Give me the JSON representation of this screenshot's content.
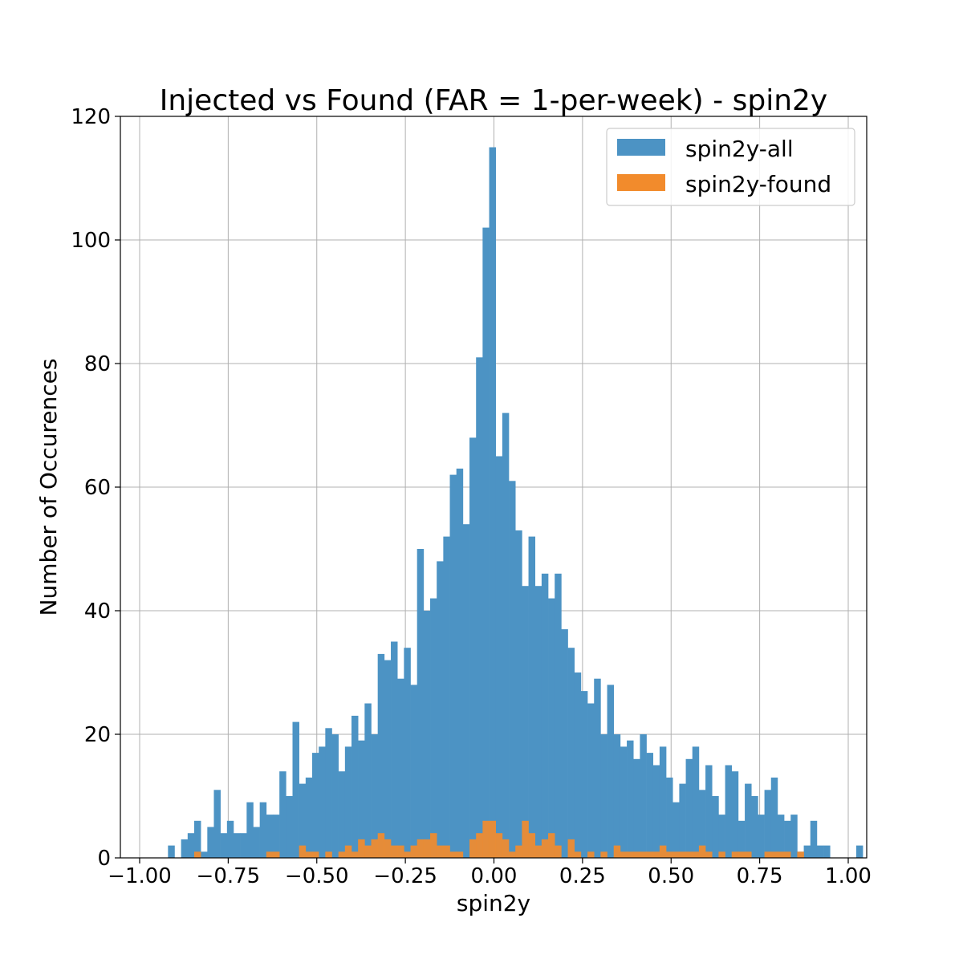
{
  "chart_data": {
    "type": "bar",
    "title": "Injected vs Found (FAR = 1-per-week) - spin2y",
    "xlabel": "spin2y",
    "ylabel": "Number of Occurences",
    "xlim": [
      -1.0,
      1.0
    ],
    "ylim": [
      0,
      120
    ],
    "xticks": [
      -1.0,
      -0.75,
      -0.5,
      -0.25,
      0.0,
      0.25,
      0.5,
      0.75,
      1.0
    ],
    "xtick_labels": [
      "−1.00",
      "−0.75",
      "−0.50",
      "−0.25",
      "0.00",
      "0.25",
      "0.50",
      "0.75",
      "1.00"
    ],
    "yticks": [
      0,
      20,
      40,
      60,
      80,
      100,
      120
    ],
    "ytick_labels": [
      "0",
      "20",
      "40",
      "60",
      "80",
      "100",
      "120"
    ],
    "grid": true,
    "legend_position": "top-right",
    "bin_start": -0.92,
    "bin_width": 0.0185,
    "series": [
      {
        "name": "spin2y-all",
        "color": "#4c93c4",
        "values": [
          2,
          0,
          3,
          4,
          6,
          1,
          5,
          11,
          4,
          6,
          4,
          4,
          9,
          5,
          9,
          7,
          7,
          14,
          10,
          22,
          12,
          13,
          17,
          18,
          21,
          20,
          14,
          18,
          23,
          19,
          25,
          20,
          33,
          32,
          35,
          29,
          34,
          28,
          50,
          40,
          42,
          48,
          52,
          62,
          63,
          54,
          68,
          81,
          102,
          115,
          65,
          72,
          61,
          53,
          44,
          52,
          44,
          46,
          42,
          46,
          37,
          34,
          30,
          27,
          25,
          29,
          20,
          28,
          20,
          18,
          19,
          16,
          20,
          17,
          15,
          18,
          13,
          9,
          12,
          16,
          18,
          11,
          15,
          10,
          7,
          15,
          14,
          6,
          12,
          10,
          7,
          11,
          13,
          7,
          6,
          7,
          1,
          2,
          6,
          2,
          2,
          0,
          0,
          0,
          0,
          2
        ]
      },
      {
        "name": "spin2y-found",
        "color": "#f28b2c",
        "values": [
          0,
          0,
          0,
          0,
          1,
          0,
          0,
          0,
          0,
          0,
          0,
          0,
          0,
          0,
          0,
          1,
          1,
          0,
          0,
          0,
          2,
          1,
          1,
          0,
          1,
          0,
          1,
          2,
          1,
          3,
          2,
          3,
          4,
          3,
          2,
          2,
          1,
          2,
          3,
          3,
          4,
          2,
          2,
          1,
          1,
          0,
          3,
          4,
          6,
          6,
          4,
          3,
          1,
          2,
          6,
          4,
          2,
          3,
          4,
          2,
          0,
          3,
          1,
          0,
          1,
          0,
          1,
          0,
          2,
          1,
          1,
          1,
          1,
          1,
          1,
          2,
          1,
          1,
          1,
          1,
          1,
          2,
          1,
          0,
          1,
          0,
          1,
          1,
          1,
          0,
          0,
          1,
          1,
          1,
          1,
          0,
          1,
          0,
          0,
          0,
          0,
          0,
          0,
          0,
          0,
          0
        ]
      }
    ]
  }
}
